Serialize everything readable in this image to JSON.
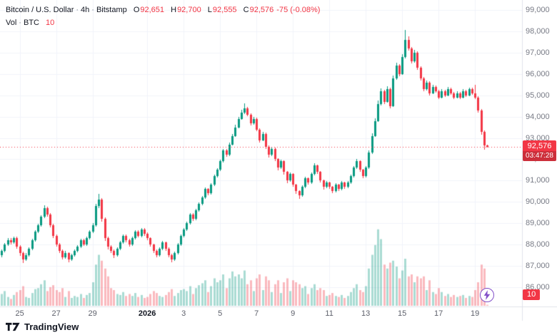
{
  "legend": {
    "symbol": "Bitcoin / U.S. Dollar",
    "separator": "·",
    "interval": "4h",
    "exchange": "Bitstamp",
    "ohlc": {
      "o_label": "O",
      "o": "92,651",
      "h_label": "H",
      "h": "92,700",
      "l_label": "L",
      "l": "92,555",
      "c_label": "C",
      "c": "92,576",
      "change": "-75 (-0.08%)"
    },
    "volume_row": {
      "label": "Vol",
      "separator": "·",
      "unit": "BTC",
      "value": "10"
    }
  },
  "price_axis": {
    "labels": [
      "99,000",
      "98,000",
      "97,000",
      "96,000",
      "95,000",
      "94,000",
      "93,000",
      "92,000",
      "91,000",
      "90,000",
      "89,000",
      "88,000",
      "87,000",
      "86,000"
    ]
  },
  "time_axis": {
    "ticks": [
      {
        "label": "25",
        "index": 6
      },
      {
        "label": "27",
        "index": 18
      },
      {
        "label": "29",
        "index": 30
      },
      {
        "label": "2026",
        "index": 48,
        "bold": true
      },
      {
        "label": "3",
        "index": 60
      },
      {
        "label": "5",
        "index": 72
      },
      {
        "label": "7",
        "index": 84
      },
      {
        "label": "9",
        "index": 96
      },
      {
        "label": "11",
        "index": 108
      },
      {
        "label": "13",
        "index": 120
      },
      {
        "label": "15",
        "index": 132
      },
      {
        "label": "17",
        "index": 144
      },
      {
        "label": "19",
        "index": 156
      }
    ]
  },
  "last_price_label": {
    "value": "92,576",
    "countdown": "03:47:28"
  },
  "volume_axis_label": {
    "value": "10"
  },
  "footer": {
    "brand": "TradingView"
  },
  "colors": {
    "up": "#089981",
    "down": "#f23645",
    "up_vol": "rgba(8,153,129,0.35)",
    "down_vol": "rgba(242,54,69,0.35)",
    "grid": "#f0f3fa",
    "axis_border": "#e0e3eb",
    "badge_bg": "#f23645",
    "countdown_bg": "#cc2f3b",
    "lightning": "#8250c8"
  },
  "chart_data": {
    "type": "candlestick",
    "title": "Bitcoin / U.S. Dollar",
    "interval": "4h",
    "exchange": "Bitstamp",
    "last_price": 92576,
    "y_range": [
      86000,
      99000
    ],
    "y_step": 1000,
    "volume_scale_max": 800,
    "columns": [
      "open",
      "high",
      "low",
      "close",
      "volume"
    ],
    "candles": [
      [
        87500,
        87780,
        87420,
        87700,
        120
      ],
      [
        87700,
        88060,
        87640,
        88000,
        150
      ],
      [
        88000,
        88290,
        87950,
        88200,
        90
      ],
      [
        88200,
        88320,
        88020,
        88100,
        70
      ],
      [
        88100,
        88380,
        88050,
        88300,
        110
      ],
      [
        88300,
        88360,
        87820,
        87900,
        140
      ],
      [
        87900,
        87960,
        87480,
        87600,
        160
      ],
      [
        87600,
        87680,
        87150,
        87300,
        200
      ],
      [
        87300,
        87590,
        87240,
        87500,
        90
      ],
      [
        87500,
        87880,
        87440,
        87800,
        80
      ],
      [
        87800,
        88270,
        87750,
        88200,
        130
      ],
      [
        88200,
        88680,
        88140,
        88600,
        170
      ],
      [
        88600,
        88980,
        88540,
        88900,
        180
      ],
      [
        88900,
        89380,
        88850,
        89300,
        220
      ],
      [
        89300,
        89830,
        89240,
        89700,
        260
      ],
      [
        89700,
        89780,
        89320,
        89400,
        150
      ],
      [
        89400,
        89460,
        88820,
        88900,
        190
      ],
      [
        88900,
        88960,
        88300,
        88400,
        210
      ],
      [
        88400,
        88460,
        87920,
        88000,
        160
      ],
      [
        88000,
        88060,
        87610,
        87700,
        140
      ],
      [
        87700,
        87760,
        87290,
        87400,
        180
      ],
      [
        87400,
        87690,
        87350,
        87600,
        90
      ],
      [
        87600,
        87650,
        87180,
        87300,
        150
      ],
      [
        87300,
        87580,
        87230,
        87500,
        80
      ],
      [
        87500,
        87770,
        87430,
        87700,
        100
      ],
      [
        87700,
        87980,
        87640,
        87900,
        90
      ],
      [
        87900,
        88280,
        87850,
        88200,
        120
      ],
      [
        88200,
        88260,
        87930,
        88000,
        80
      ],
      [
        88000,
        88370,
        87950,
        88300,
        110
      ],
      [
        88300,
        88690,
        88240,
        88600,
        130
      ],
      [
        88600,
        89000,
        88540,
        88900,
        240
      ],
      [
        88900,
        89920,
        88850,
        89800,
        420
      ],
      [
        89800,
        90380,
        89720,
        90100,
        520
      ],
      [
        90100,
        90180,
        89080,
        89200,
        460
      ],
      [
        89200,
        89260,
        88160,
        88300,
        380
      ],
      [
        88300,
        88380,
        87760,
        87900,
        300
      ],
      [
        87900,
        87970,
        87600,
        87700,
        180
      ],
      [
        87700,
        87760,
        87380,
        87500,
        160
      ],
      [
        87500,
        87880,
        87450,
        87800,
        120
      ],
      [
        87800,
        88170,
        87740,
        88100,
        110
      ],
      [
        88100,
        88470,
        88050,
        88400,
        140
      ],
      [
        88400,
        88460,
        88120,
        88200,
        100
      ],
      [
        88200,
        88260,
        87920,
        88000,
        120
      ],
      [
        88000,
        88380,
        87950,
        88300,
        100
      ],
      [
        88300,
        88670,
        88240,
        88600,
        130
      ],
      [
        88600,
        88660,
        88330,
        88400,
        90
      ],
      [
        88400,
        88780,
        88350,
        88700,
        110
      ],
      [
        88700,
        88760,
        88420,
        88500,
        80
      ],
      [
        88500,
        88560,
        88220,
        88300,
        90
      ],
      [
        88300,
        88350,
        87920,
        88000,
        120
      ],
      [
        88000,
        88050,
        87610,
        87700,
        150
      ],
      [
        87700,
        87760,
        87390,
        87500,
        130
      ],
      [
        87500,
        87870,
        87450,
        87800,
        100
      ],
      [
        87800,
        88170,
        87740,
        88100,
        90
      ],
      [
        88100,
        88150,
        87720,
        87800,
        110
      ],
      [
        87800,
        87860,
        87400,
        87500,
        140
      ],
      [
        87500,
        87560,
        87160,
        87300,
        170
      ],
      [
        87300,
        87680,
        87240,
        87600,
        100
      ],
      [
        87600,
        88080,
        87550,
        88000,
        130
      ],
      [
        88000,
        88470,
        87950,
        88400,
        160
      ],
      [
        88400,
        88780,
        88340,
        88700,
        170
      ],
      [
        88700,
        89080,
        88650,
        89000,
        150
      ],
      [
        89000,
        89480,
        88950,
        89400,
        200
      ],
      [
        89400,
        89460,
        89110,
        89200,
        120
      ],
      [
        89200,
        89680,
        89150,
        89600,
        180
      ],
      [
        89600,
        89990,
        89540,
        89900,
        210
      ],
      [
        89900,
        90280,
        89840,
        90200,
        230
      ],
      [
        90200,
        90690,
        90150,
        90600,
        260
      ],
      [
        90600,
        90660,
        90310,
        90400,
        140
      ],
      [
        90400,
        90880,
        90350,
        90800,
        200
      ],
      [
        90800,
        91290,
        90750,
        91200,
        280
      ],
      [
        91200,
        91590,
        91140,
        91500,
        240
      ],
      [
        91500,
        91990,
        91440,
        91900,
        260
      ],
      [
        91900,
        92500,
        91850,
        92400,
        320
      ],
      [
        92400,
        92470,
        92100,
        92200,
        180
      ],
      [
        92200,
        92790,
        92150,
        92700,
        280
      ],
      [
        92700,
        93200,
        92640,
        93100,
        350
      ],
      [
        93100,
        93610,
        93040,
        93500,
        300
      ],
      [
        93500,
        94000,
        93440,
        93900,
        320
      ],
      [
        93900,
        94310,
        93840,
        94200,
        280
      ],
      [
        94200,
        94620,
        94130,
        94400,
        360
      ],
      [
        94400,
        94460,
        94010,
        94100,
        220
      ],
      [
        94100,
        94160,
        93590,
        93700,
        260
      ],
      [
        93700,
        93980,
        93630,
        93900,
        150
      ],
      [
        93900,
        93950,
        93310,
        93400,
        280
      ],
      [
        93400,
        93460,
        92790,
        92900,
        320
      ],
      [
        92900,
        93280,
        92840,
        93200,
        160
      ],
      [
        93200,
        93250,
        92500,
        92600,
        300
      ],
      [
        92600,
        92660,
        92080,
        92200,
        260
      ],
      [
        92200,
        92580,
        92140,
        92500,
        140
      ],
      [
        92500,
        92550,
        91900,
        92000,
        220
      ],
      [
        92000,
        92050,
        91490,
        91600,
        260
      ],
      [
        91600,
        91980,
        91540,
        91900,
        130
      ],
      [
        91900,
        91950,
        91290,
        91400,
        240
      ],
      [
        91400,
        91460,
        90880,
        91000,
        280
      ],
      [
        91000,
        91380,
        90940,
        91300,
        150
      ],
      [
        91300,
        91350,
        90700,
        90800,
        260
      ],
      [
        90800,
        90860,
        90380,
        90500,
        240
      ],
      [
        90500,
        90560,
        90160,
        90300,
        220
      ],
      [
        90300,
        90780,
        90240,
        90700,
        180
      ],
      [
        90700,
        91190,
        90650,
        91100,
        200
      ],
      [
        91100,
        91160,
        90810,
        90900,
        120
      ],
      [
        90900,
        91390,
        90840,
        91300,
        180
      ],
      [
        91300,
        91800,
        91240,
        91700,
        220
      ],
      [
        91700,
        91760,
        91300,
        91400,
        160
      ],
      [
        91400,
        91450,
        90900,
        91000,
        180
      ],
      [
        91000,
        91060,
        90590,
        90700,
        160
      ],
      [
        90700,
        90980,
        90640,
        90900,
        100
      ],
      [
        90900,
        90950,
        90620,
        90700,
        110
      ],
      [
        90700,
        90760,
        90410,
        90500,
        130
      ],
      [
        90500,
        90870,
        90450,
        90800,
        100
      ],
      [
        90800,
        90850,
        90520,
        90600,
        90
      ],
      [
        90600,
        90970,
        90550,
        90900,
        110
      ],
      [
        90900,
        90950,
        90610,
        90700,
        80
      ],
      [
        90700,
        90980,
        90640,
        90900,
        100
      ],
      [
        90900,
        91280,
        90850,
        91200,
        140
      ],
      [
        91200,
        91690,
        91150,
        91600,
        180
      ],
      [
        91600,
        92020,
        91540,
        91900,
        220
      ],
      [
        91900,
        91950,
        91410,
        91500,
        160
      ],
      [
        91500,
        91560,
        91110,
        91200,
        140
      ],
      [
        91200,
        91690,
        91140,
        91600,
        200
      ],
      [
        91600,
        92400,
        91550,
        92300,
        380
      ],
      [
        92300,
        93220,
        92240,
        93100,
        520
      ],
      [
        93100,
        93930,
        93040,
        93800,
        620
      ],
      [
        93800,
        94740,
        93740,
        94600,
        780
      ],
      [
        94600,
        95340,
        94530,
        95200,
        680
      ],
      [
        95200,
        95260,
        94580,
        94700,
        420
      ],
      [
        94700,
        95420,
        94640,
        95300,
        380
      ],
      [
        95300,
        95360,
        94380,
        94500,
        440
      ],
      [
        94500,
        95930,
        94450,
        95800,
        460
      ],
      [
        95800,
        96520,
        95740,
        96400,
        400
      ],
      [
        96400,
        96470,
        95890,
        96000,
        280
      ],
      [
        96000,
        96920,
        95950,
        96800,
        360
      ],
      [
        96800,
        98050,
        96740,
        97600,
        480
      ],
      [
        97600,
        97780,
        97080,
        97200,
        300
      ],
      [
        97200,
        97260,
        96480,
        96600,
        320
      ],
      [
        96600,
        97120,
        96540,
        97000,
        240
      ],
      [
        97000,
        97060,
        96180,
        96300,
        300
      ],
      [
        96300,
        96360,
        95700,
        95800,
        280
      ],
      [
        95800,
        95860,
        95180,
        95300,
        300
      ],
      [
        95300,
        95690,
        95240,
        95600,
        160
      ],
      [
        95600,
        95650,
        94990,
        95100,
        260
      ],
      [
        95100,
        95490,
        95040,
        95400,
        140
      ],
      [
        95400,
        95460,
        95110,
        95200,
        120
      ],
      [
        95200,
        95250,
        94810,
        94900,
        180
      ],
      [
        94900,
        95290,
        94850,
        95200,
        140
      ],
      [
        95200,
        95260,
        94920,
        95000,
        100
      ],
      [
        95000,
        95380,
        94950,
        95300,
        120
      ],
      [
        95300,
        95350,
        95010,
        95100,
        90
      ],
      [
        95100,
        95160,
        94820,
        94900,
        110
      ],
      [
        94900,
        95180,
        94840,
        95100,
        90
      ],
      [
        95100,
        95150,
        94820,
        94900,
        100
      ],
      [
        94900,
        95280,
        94850,
        95200,
        110
      ],
      [
        95200,
        95250,
        94930,
        95000,
        80
      ],
      [
        95000,
        95370,
        94950,
        95300,
        100
      ],
      [
        95300,
        95350,
        95020,
        95100,
        90
      ],
      [
        95100,
        95480,
        94820,
        94900,
        160
      ],
      [
        94900,
        94960,
        94180,
        94300,
        240
      ],
      [
        94300,
        94340,
        93150,
        93300,
        420
      ],
      [
        93300,
        93340,
        92450,
        92651,
        380
      ],
      [
        92651,
        92700,
        92555,
        92576,
        10
      ]
    ]
  }
}
